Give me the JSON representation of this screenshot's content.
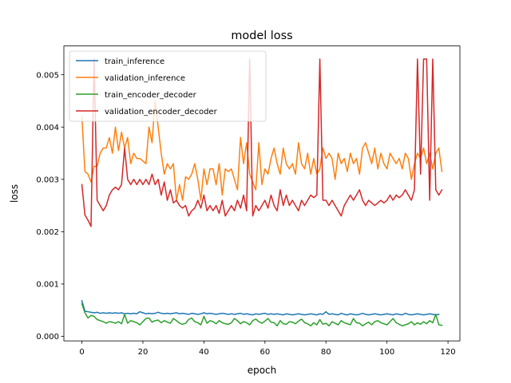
{
  "chart_data": {
    "type": "line",
    "title": "model loss",
    "xlabel": "epoch",
    "ylabel": "loss",
    "xlim": [
      -5.9,
      123.9
    ],
    "ylim": [
      -8.7e-05,
      0.00555
    ],
    "xticks": [
      0,
      20,
      40,
      60,
      80,
      100,
      120
    ],
    "xtick_labels": [
      "0",
      "20",
      "40",
      "60",
      "80",
      "100",
      "120"
    ],
    "yticks": [
      0,
      0.001,
      0.002,
      0.003,
      0.004,
      0.005
    ],
    "ytick_labels": [
      "0.000",
      "0.001",
      "0.002",
      "0.003",
      "0.004",
      "0.005"
    ],
    "grid": false,
    "legend_position": "upper-left",
    "series": [
      {
        "name": "train_inference",
        "color": "#1f77b4",
        "values": [
          0.00068,
          0.00048,
          0.00047,
          0.00046,
          0.00045,
          0.00046,
          0.00044,
          0.00045,
          0.00044,
          0.00045,
          0.00044,
          0.00045,
          0.00044,
          0.00045,
          0.00043,
          0.00044,
          0.00043,
          0.00044,
          0.00043,
          0.00047,
          0.00045,
          0.00043,
          0.00044,
          0.00043,
          0.00044,
          0.00046,
          0.00044,
          0.00043,
          0.00044,
          0.00043,
          0.00044,
          0.00045,
          0.00043,
          0.00044,
          0.00043,
          0.00042,
          0.00044,
          0.00043,
          0.00042,
          0.00043,
          0.00045,
          0.00043,
          0.00044,
          0.00043,
          0.00042,
          0.00043,
          0.00044,
          0.00043,
          0.00042,
          0.00043,
          0.00042,
          0.00043,
          0.00044,
          0.00042,
          0.00043,
          0.00042,
          0.00041,
          0.00043,
          0.00042,
          0.00043,
          0.00044,
          0.00042,
          0.00043,
          0.00042,
          0.00043,
          0.00042,
          0.00041,
          0.00043,
          0.00042,
          0.00041,
          0.00042,
          0.00043,
          0.00042,
          0.00041,
          0.00042,
          0.00043,
          0.00042,
          0.00041,
          0.00043,
          0.00042,
          0.00047,
          0.00042,
          0.00043,
          0.00042,
          0.00041,
          0.00044,
          0.00042,
          0.00041,
          0.00043,
          0.00042,
          0.00041,
          0.00042,
          0.00044,
          0.00042,
          0.00041,
          0.00042,
          0.00043,
          0.00042,
          0.00041,
          0.00042,
          0.00043,
          0.00042,
          0.00041,
          0.00043,
          0.00042,
          0.00041,
          0.00044,
          0.00042,
          0.00041,
          0.00042,
          0.00043,
          0.00042,
          0.00041,
          0.00042,
          0.00043,
          0.00042,
          0.00041,
          0.00042
        ]
      },
      {
        "name": "validation_inference",
        "color": "#ff7f0e",
        "values": [
          0.0042,
          0.00315,
          0.0031,
          0.00295,
          0.00325,
          0.00325,
          0.0035,
          0.0036,
          0.0036,
          0.0038,
          0.0035,
          0.004,
          0.00355,
          0.0039,
          0.0036,
          0.0038,
          0.0033,
          0.0035,
          0.0034,
          0.0034,
          0.00335,
          0.0033,
          0.004,
          0.0037,
          0.0045,
          0.004,
          0.0035,
          0.0031,
          0.0033,
          0.0032,
          0.0033,
          0.0026,
          0.0029,
          0.0026,
          0.00305,
          0.003,
          0.0031,
          0.0033,
          0.003,
          0.0026,
          0.0032,
          0.0029,
          0.0032,
          0.0032,
          0.0029,
          0.0033,
          0.0027,
          0.0032,
          0.00315,
          0.0032,
          0.003,
          0.0028,
          0.0038,
          0.0033,
          0.0037,
          0.0031,
          0.00295,
          0.0028,
          0.0037,
          0.0029,
          0.0032,
          0.0031,
          0.0034,
          0.0036,
          0.0033,
          0.0031,
          0.0036,
          0.0033,
          0.0032,
          0.0033,
          0.0031,
          0.0037,
          0.0033,
          0.0032,
          0.0035,
          0.0031,
          0.0034,
          0.0031,
          0.0032,
          0.0036,
          0.0034,
          0.0035,
          0.0034,
          0.003,
          0.0035,
          0.0033,
          0.0034,
          0.00315,
          0.0035,
          0.0033,
          0.0034,
          0.0031,
          0.0036,
          0.0037,
          0.0035,
          0.0033,
          0.0036,
          0.0032,
          0.0035,
          0.0033,
          0.0032,
          0.0035,
          0.0034,
          0.0033,
          0.0034,
          0.0032,
          0.0035,
          0.0034,
          0.003,
          0.0033,
          0.0035,
          0.0034,
          0.0036,
          0.0033,
          0.0035,
          0.0032,
          0.0035,
          0.0036,
          0.00315
        ]
      },
      {
        "name": "train_encoder_decoder",
        "color": "#2ca02c",
        "values": [
          0.00062,
          0.00045,
          0.00035,
          0.0004,
          0.00038,
          0.00032,
          0.0003,
          0.00028,
          0.00025,
          0.00028,
          0.00027,
          0.00025,
          0.00028,
          0.00024,
          0.00042,
          0.00025,
          0.0003,
          0.00028,
          0.00026,
          0.00022,
          0.00028,
          0.00034,
          0.00035,
          0.00027,
          0.0003,
          0.00031,
          0.00026,
          0.0003,
          0.00027,
          0.00025,
          0.00034,
          0.0003,
          0.00025,
          0.00023,
          0.00025,
          0.00032,
          0.00035,
          0.00028,
          0.00026,
          0.00022,
          0.00038,
          0.00025,
          0.0003,
          0.00028,
          0.00024,
          0.0003,
          0.00026,
          0.00024,
          0.00023,
          0.00026,
          0.00034,
          0.0003,
          0.00024,
          0.00028,
          0.00026,
          0.00022,
          0.0003,
          0.00033,
          0.00028,
          0.00025,
          0.00029,
          0.00034,
          0.00027,
          0.00026,
          0.0002,
          0.0003,
          0.00024,
          0.00023,
          0.00028,
          0.00027,
          0.00024,
          0.00029,
          0.00033,
          0.00026,
          0.00024,
          0.0002,
          0.00026,
          0.00022,
          0.00032,
          0.00023,
          0.00025,
          0.0002,
          0.00028,
          0.00025,
          0.00022,
          0.0003,
          0.00026,
          0.00024,
          0.00022,
          0.00034,
          0.00026,
          0.00025,
          0.0002,
          0.00024,
          0.00027,
          0.00022,
          0.00028,
          0.0003,
          0.00026,
          0.00024,
          0.00022,
          0.00028,
          0.00034,
          0.00026,
          0.00023,
          0.0002,
          0.00022,
          0.00024,
          0.00028,
          0.00022,
          0.00026,
          0.00023,
          0.00028,
          0.00024,
          0.0003,
          0.00026,
          0.00042,
          0.00022,
          0.00021
        ]
      },
      {
        "name": "validation_encoder_decoder",
        "color": "#d62728",
        "values": [
          0.0029,
          0.00232,
          0.00222,
          0.0021,
          0.0053,
          0.0026,
          0.0025,
          0.0024,
          0.0025,
          0.0027,
          0.0028,
          0.00285,
          0.0028,
          0.0029,
          0.0036,
          0.003,
          0.0029,
          0.003,
          0.0029,
          0.003,
          0.0029,
          0.003,
          0.0029,
          0.0031,
          0.0029,
          0.003,
          0.0027,
          0.00295,
          0.0026,
          0.0028,
          0.00255,
          0.0026,
          0.0025,
          0.00245,
          0.0025,
          0.0023,
          0.0024,
          0.00245,
          0.0026,
          0.00245,
          0.0027,
          0.0024,
          0.0025,
          0.0024,
          0.0025,
          0.00235,
          0.0026,
          0.0023,
          0.0024,
          0.0025,
          0.0024,
          0.0026,
          0.00245,
          0.0027,
          0.0024,
          0.0053,
          0.0023,
          0.0025,
          0.0024,
          0.0025,
          0.0026,
          0.00245,
          0.0027,
          0.0025,
          0.0024,
          0.0028,
          0.0025,
          0.0027,
          0.0025,
          0.0026,
          0.0025,
          0.0024,
          0.0026,
          0.0025,
          0.0026,
          0.0027,
          0.00265,
          0.0027,
          0.0053,
          0.0026,
          0.0026,
          0.0025,
          0.0026,
          0.0025,
          0.0024,
          0.0023,
          0.0025,
          0.0026,
          0.0027,
          0.0026,
          0.0027,
          0.0028,
          0.0026,
          0.0025,
          0.0026,
          0.00255,
          0.0025,
          0.00255,
          0.0026,
          0.00255,
          0.0026,
          0.0027,
          0.0026,
          0.0027,
          0.00265,
          0.0027,
          0.0028,
          0.0027,
          0.0026,
          0.0028,
          0.0053,
          0.0031,
          0.0053,
          0.0053,
          0.0026,
          0.0053,
          0.0028,
          0.0027,
          0.0028
        ]
      }
    ]
  }
}
